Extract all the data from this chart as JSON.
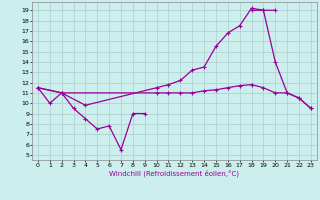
{
  "xlabel": "Windchill (Refroidissement éolien,°C)",
  "background_color": "#cceeed",
  "grid_color": "#aacccc",
  "line_color": "#990099",
  "x_ticks": [
    0,
    1,
    2,
    3,
    4,
    5,
    6,
    7,
    8,
    9,
    10,
    11,
    12,
    13,
    14,
    15,
    16,
    17,
    18,
    19,
    20,
    21,
    22,
    23
  ],
  "y_ticks": [
    5,
    6,
    7,
    8,
    9,
    10,
    11,
    12,
    13,
    14,
    15,
    16,
    17,
    18,
    19
  ],
  "ylim": [
    4.5,
    19.8
  ],
  "xlim": [
    -0.5,
    23.5
  ],
  "series1_x": [
    0,
    1,
    2,
    3,
    4,
    5,
    6,
    7,
    8,
    9
  ],
  "series1_y": [
    11.5,
    10.0,
    11.0,
    9.5,
    8.5,
    7.5,
    7.8,
    5.5,
    9.0,
    9.0
  ],
  "series2_x": [
    0,
    2,
    4,
    10,
    11,
    12,
    13,
    14,
    15,
    16,
    17,
    18,
    19,
    20
  ],
  "series2_y": [
    11.5,
    11.0,
    9.8,
    11.5,
    11.8,
    12.2,
    13.2,
    13.5,
    15.5,
    16.8,
    17.5,
    19.2,
    19.0,
    19.0
  ],
  "series3_x": [
    0,
    2,
    10,
    11,
    12,
    13,
    14,
    15,
    16,
    17,
    18,
    19,
    20,
    21,
    22,
    23
  ],
  "series3_y": [
    11.5,
    11.0,
    11.0,
    11.0,
    11.0,
    11.0,
    11.2,
    11.3,
    11.5,
    11.7,
    11.8,
    11.5,
    11.0,
    11.0,
    10.5,
    9.5
  ],
  "series4_x": [
    18,
    19,
    20,
    21,
    22,
    23
  ],
  "series4_y": [
    19.0,
    19.0,
    14.0,
    11.0,
    10.5,
    9.5
  ]
}
